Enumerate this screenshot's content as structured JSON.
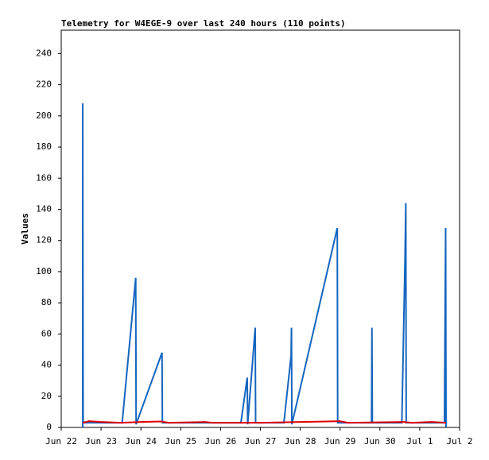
{
  "chart_data": {
    "type": "line",
    "title": "Telemetry for W4EGE-9 over last 240 hours (110 points)",
    "y_label": "Values",
    "xlim": [
      0,
      10
    ],
    "xticks": [
      {
        "value": 0,
        "label": "Jun 22"
      },
      {
        "value": 1,
        "label": "Jun 23"
      },
      {
        "value": 2,
        "label": "Jun 24"
      },
      {
        "value": 3,
        "label": "Jun 25"
      },
      {
        "value": 4,
        "label": "Jun 26"
      },
      {
        "value": 5,
        "label": "Jun 27"
      },
      {
        "value": 6,
        "label": "Jun 28"
      },
      {
        "value": 7,
        "label": "Jun 29"
      },
      {
        "value": 8,
        "label": "Jun 30"
      },
      {
        "value": 9,
        "label": "Jul 1"
      },
      {
        "value": 10,
        "label": "Jul 2"
      }
    ],
    "ylim": [
      0,
      255
    ],
    "yticks": [
      0,
      20,
      40,
      60,
      80,
      100,
      120,
      140,
      160,
      180,
      200,
      220,
      240
    ],
    "series": [
      {
        "color": "#1565c0",
        "x": [
          0.54,
          0.54,
          0.55,
          1.53,
          1.87,
          1.88,
          2.53,
          2.54,
          4.51,
          4.67,
          4.68,
          4.87,
          4.88,
          5.59,
          5.77,
          5.78,
          5.79,
          6.93,
          6.94,
          7.79,
          7.8,
          7.81,
          8.55,
          8.63,
          8.65,
          8.66,
          9.62,
          9.65,
          9.66
        ],
        "values": [
          0,
          208,
          3,
          3,
          96,
          2,
          48,
          3,
          3,
          32,
          2,
          64,
          3,
          3,
          46,
          64,
          2,
          128,
          3,
          3,
          64,
          3,
          3,
          108,
          144,
          3,
          3,
          128,
          0
        ]
      },
      {
        "color": "#e00000",
        "x": [
          0.54,
          0.7,
          1.0,
          1.5,
          2.0,
          2.5,
          2.7,
          3.6,
          3.8,
          5.0,
          6.0,
          7.0,
          7.2,
          8.6,
          8.8,
          9.3,
          9.66
        ],
        "values": [
          3,
          4,
          3.5,
          3,
          3.5,
          3.8,
          3,
          3.5,
          3,
          3,
          3.5,
          4,
          3,
          3.5,
          3,
          3.5,
          3
        ]
      }
    ]
  }
}
